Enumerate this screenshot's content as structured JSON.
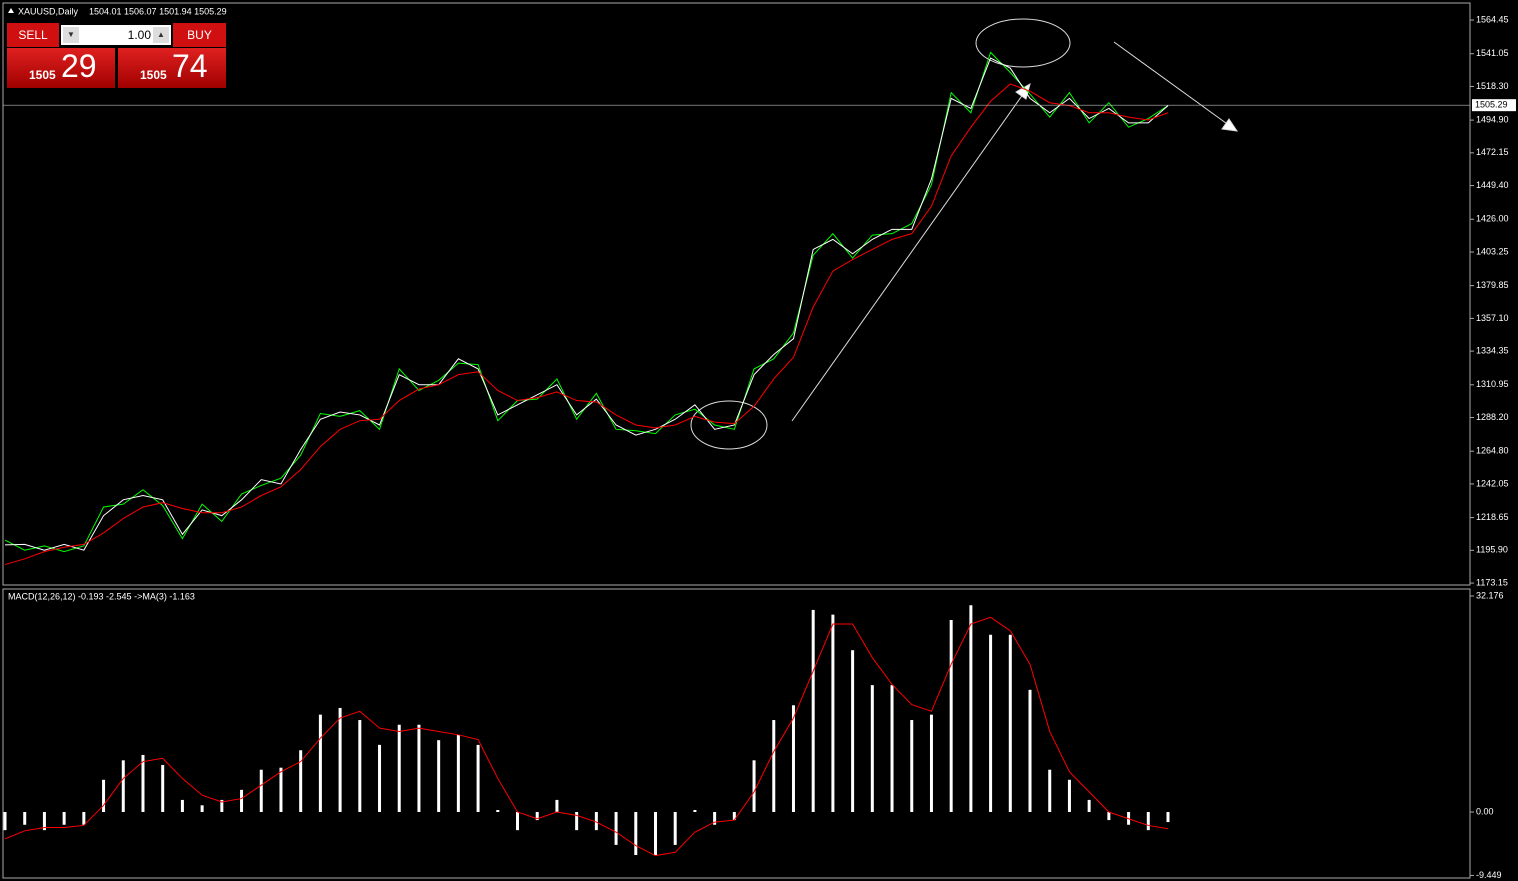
{
  "header": {
    "symbol": "XAUUSD,Daily",
    "ohlc": "1504.01 1506.07 1501.94 1505.29"
  },
  "trade_panel": {
    "sell": "SELL",
    "lot": "1.00",
    "buy": "BUY",
    "bid_big": "1505",
    "bid_small": "29",
    "ask_big": "1505",
    "ask_small": "74"
  },
  "chart_data": [
    {
      "type": "line",
      "ylim": [
        1171.8,
        1576.3
      ],
      "yticks": [
        {
          "value": 1564.45,
          "label": "1564.45"
        },
        {
          "value": 1541.05,
          "label": "1541.05"
        },
        {
          "value": 1518.3,
          "label": "1518.30"
        },
        {
          "value": 1494.9,
          "label": "1494.90"
        },
        {
          "value": 1472.15,
          "label": "1472.15"
        },
        {
          "value": 1449.4,
          "label": "1449.40"
        },
        {
          "value": 1426,
          "label": "1426.00"
        },
        {
          "value": 1403.25,
          "label": "1403.25"
        },
        {
          "value": 1379.85,
          "label": "1379.85"
        },
        {
          "value": 1357.1,
          "label": "1357.10"
        },
        {
          "value": 1334.35,
          "label": "1334.35"
        },
        {
          "value": 1310.95,
          "label": "1310.95"
        },
        {
          "value": 1288.2,
          "label": "1288.20"
        },
        {
          "value": 1264.8,
          "label": "1264.80"
        },
        {
          "value": 1242.05,
          "label": "1242.05"
        },
        {
          "value": 1218.65,
          "label": "1218.65"
        },
        {
          "value": 1195.9,
          "label": "1195.90"
        },
        {
          "value": 1173.15,
          "label": "1173.15"
        }
      ],
      "current_price": 1505.29,
      "series": [
        {
          "color": "#00ff00",
          "values": [
            1203,
            1196,
            1199,
            1195,
            1199,
            1226,
            1228,
            1238,
            1227,
            1204,
            1228,
            1216,
            1235,
            1241,
            1246,
            1262,
            1291,
            1289,
            1293,
            1280,
            1322,
            1307,
            1314,
            1326,
            1325,
            1286,
            1300,
            1301,
            1315,
            1287,
            1305,
            1280,
            1279,
            1277,
            1290,
            1294,
            1283,
            1280,
            1322,
            1329,
            1347,
            1401,
            1416,
            1399,
            1415,
            1416,
            1423,
            1450,
            1514,
            1500,
            1542,
            1528,
            1513,
            1497,
            1514,
            1493,
            1507,
            1490,
            1496,
            1505
          ]
        },
        {
          "color": "#ffffff",
          "values": [
            1199.7,
            1200,
            1196,
            1200,
            1196,
            1220,
            1231,
            1234,
            1231,
            1207,
            1224,
            1220,
            1231,
            1245,
            1242,
            1266,
            1287,
            1292,
            1290,
            1283,
            1318,
            1311,
            1311,
            1329,
            1322,
            1290,
            1297,
            1304,
            1311,
            1290,
            1301,
            1283,
            1276,
            1280,
            1287,
            1297,
            1280,
            1283,
            1318,
            1332,
            1343,
            1405,
            1412,
            1402,
            1412,
            1419,
            1419,
            1454,
            1510,
            1503,
            1538,
            1531,
            1510,
            1500,
            1510,
            1496,
            1503,
            1493,
            1493,
            1505
          ]
        },
        {
          "color": "#ff0000",
          "values": [
            1186,
            1190,
            1195,
            1198,
            1200,
            1208,
            1218,
            1226,
            1229,
            1225,
            1222,
            1222,
            1226,
            1234,
            1240,
            1252,
            1268,
            1280,
            1286,
            1287,
            1300,
            1308,
            1311,
            1318,
            1320,
            1307,
            1300,
            1302,
            1306,
            1300,
            1299,
            1290,
            1283,
            1281,
            1283,
            1289,
            1285,
            1284,
            1296,
            1315,
            1330,
            1365,
            1390,
            1398,
            1405,
            1412,
            1416,
            1435,
            1470,
            1490,
            1508,
            1520,
            1515,
            1507,
            1505,
            1500,
            1500,
            1497,
            1495,
            1500
          ]
        }
      ]
    },
    {
      "type": "bar",
      "title": "MACD(12,26,12) -0.193 -2.545  ->MA(3) -1.163",
      "ylim": [
        -9.83,
        33.07
      ],
      "yticks": [
        32.176,
        {
          "value": 0,
          "label": "0.00"
        },
        -9.449
      ],
      "series": [
        {
          "color": "#ffffff",
          "values": [
            -2.7,
            -1.9,
            -2.7,
            -1.9,
            -1.9,
            4.8,
            7.7,
            8.5,
            7,
            1.8,
            1,
            1.8,
            3.3,
            6.3,
            6.6,
            9.2,
            14.5,
            15.5,
            13.7,
            10,
            13,
            13,
            10.7,
            11.5,
            10,
            0.3,
            -2.7,
            -1.2,
            1.8,
            -2.7,
            -2.7,
            -4.9,
            -6.4,
            -6.4,
            -4.9,
            0.3,
            -1.9,
            -1.2,
            7.7,
            13.7,
            15.9,
            30.1,
            29.4,
            24.1,
            18.9,
            18.9,
            13.7,
            14.5,
            28.6,
            30.8,
            26.4,
            26.4,
            18.2,
            6.3,
            4.8,
            1.8,
            -1.2,
            -1.9,
            -2.7,
            -1.5
          ]
        },
        {
          "type": "line",
          "color": "#ff0000",
          "values": [
            -4,
            -2.8,
            -2.3,
            -2.3,
            -2,
            1,
            5,
            7.5,
            8,
            5,
            2.5,
            1.5,
            2,
            4,
            6,
            7.5,
            11,
            14,
            15,
            12.5,
            12,
            12.5,
            12,
            11.5,
            10.8,
            5,
            0,
            -1,
            0,
            -0.5,
            -1.5,
            -3,
            -5,
            -6.5,
            -6,
            -3,
            -1.5,
            -1.2,
            3,
            9,
            14,
            21,
            28,
            28,
            23,
            19,
            16,
            15,
            22,
            28,
            29,
            27,
            22,
            12,
            6,
            3,
            0,
            -1,
            -2,
            -2.5
          ]
        }
      ]
    }
  ]
}
